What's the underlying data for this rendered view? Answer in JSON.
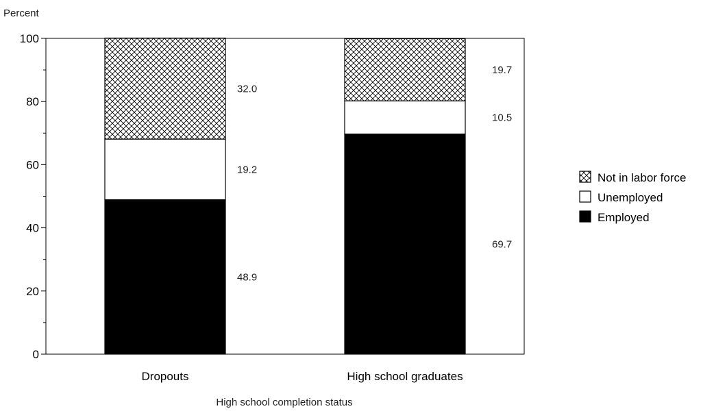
{
  "chart_data": {
    "type": "bar",
    "stacked": true,
    "ylabel": "Percent",
    "xlabel": "High school completion status",
    "ylim": [
      0,
      100
    ],
    "yticks": [
      0,
      20,
      40,
      60,
      80,
      100
    ],
    "categories": [
      "Dropouts",
      "High school graduates"
    ],
    "series": [
      {
        "name": "Employed",
        "values": [
          48.9,
          69.7
        ],
        "labels": [
          "48.9",
          "69.7"
        ],
        "fill": "solid",
        "color": "#000000"
      },
      {
        "name": "Unemployed",
        "values": [
          19.2,
          10.5
        ],
        "labels": [
          "19.2",
          "10.5"
        ],
        "fill": "empty",
        "color": "#ffffff"
      },
      {
        "name": "Not in labor force",
        "values": [
          32.0,
          19.7
        ],
        "labels": [
          "32.0",
          "19.7"
        ],
        "fill": "crosshatch",
        "color": "#ffffff"
      }
    ],
    "legend": {
      "position": "right",
      "order": [
        "Not in labor force",
        "Unemployed",
        "Employed"
      ]
    },
    "grid": false
  }
}
